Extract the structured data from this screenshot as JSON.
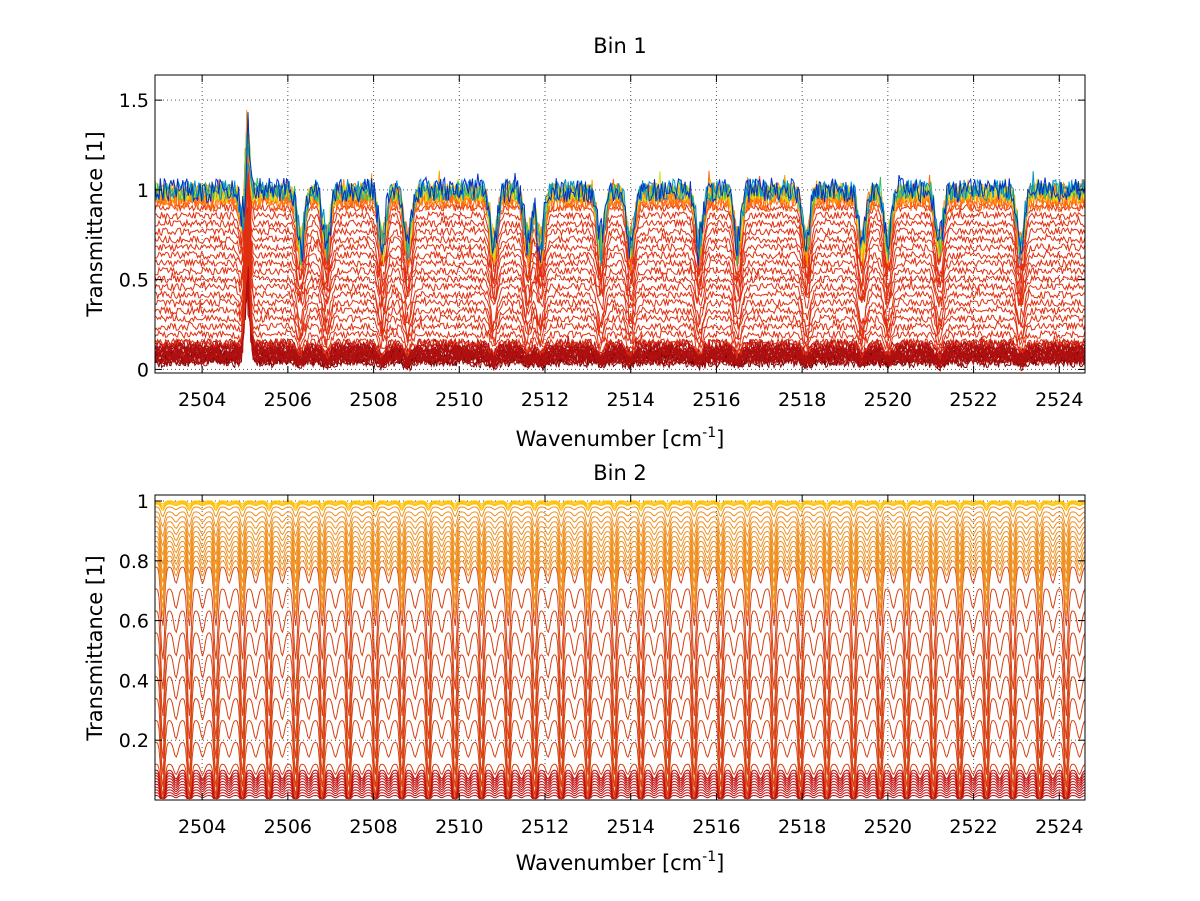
{
  "chart_data": [
    {
      "type": "line",
      "title": "Bin 1",
      "xlabel_main": "Wavenumber [cm",
      "xlabel_sup": "-1",
      "xlabel_end": "]",
      "ylabel": "Transmittance [1]",
      "xlim": [
        2502.9,
        2524.6
      ],
      "ylim": [
        -0.02,
        1.64
      ],
      "xticks": [
        2504,
        2506,
        2508,
        2510,
        2512,
        2514,
        2516,
        2518,
        2520,
        2522,
        2524
      ],
      "xtick_labels": [
        "2504",
        "2506",
        "2508",
        "2510",
        "2512",
        "2514",
        "2516",
        "2518",
        "2520",
        "2522",
        "2524"
      ],
      "yticks": [
        0,
        0.5,
        1,
        1.5
      ],
      "ytick_labels": [
        "0",
        "0.5",
        "1",
        "1.5"
      ],
      "grid": true,
      "x_range": [
        2502.9,
        2524.6
      ],
      "line_groups": [
        {
          "color": "#0030c8",
          "count": 1,
          "base_low": 1.0,
          "base_high": 1.0,
          "noise": 0.07,
          "spike": 0.1
        },
        {
          "color": "#0090d0",
          "count": 1,
          "base_low": 1.0,
          "base_high": 1.0,
          "noise": 0.06,
          "spike": 0.1
        },
        {
          "color": "#30c060",
          "count": 1,
          "base_low": 0.99,
          "base_high": 0.99,
          "noise": 0.05,
          "spike": 0.1
        },
        {
          "color": "#e0e020",
          "count": 2,
          "base_low": 0.98,
          "base_high": 0.99,
          "noise": 0.05,
          "spike": 0.1
        },
        {
          "color": "#ffa000",
          "count": 3,
          "base_low": 0.97,
          "base_high": 0.99,
          "noise": 0.05,
          "spike": 0.12
        },
        {
          "color": "#ff6a10",
          "count": 6,
          "base_low": 0.93,
          "base_high": 0.99,
          "noise": 0.05,
          "spike": 0.12
        },
        {
          "color": "#e03010",
          "count": 18,
          "base_low": 0.15,
          "base_high": 0.9,
          "noise": 0.02,
          "spike": 0.05
        },
        {
          "color": "#b01010",
          "count": 12,
          "base_low": 0.05,
          "base_high": 0.14,
          "noise": 0.03,
          "spike": 0.04
        },
        {
          "color": "#800000",
          "count": 6,
          "base_low": 0.04,
          "base_high": 0.1,
          "noise": 0.03,
          "spike": 0.03
        }
      ],
      "dips": [
        2505.0,
        2506.3,
        2506.9,
        2508.2,
        2508.8,
        2510.8,
        2511.6,
        2511.9,
        2513.3,
        2514.0,
        2515.6,
        2516.5,
        2518.1,
        2519.4,
        2520.0,
        2521.2,
        2523.1
      ],
      "spike_at": 2505.05,
      "spike_peak": 1.62
    },
    {
      "type": "line",
      "title": "Bin 2",
      "xlabel_main": "Wavenumber [cm",
      "xlabel_sup": "-1",
      "xlabel_end": "]",
      "ylabel": "Transmittance [1]",
      "xlim": [
        2502.9,
        2524.6
      ],
      "ylim": [
        0.0,
        1.02
      ],
      "xticks": [
        2504,
        2506,
        2508,
        2510,
        2512,
        2514,
        2516,
        2518,
        2520,
        2522,
        2524
      ],
      "xtick_labels": [
        "2504",
        "2506",
        "2508",
        "2510",
        "2512",
        "2514",
        "2516",
        "2518",
        "2520",
        "2522",
        "2524"
      ],
      "yticks": [
        0.2,
        0.4,
        0.6,
        0.8,
        1
      ],
      "ytick_labels": [
        "0.2",
        "0.4",
        "0.6",
        "0.8",
        "1"
      ],
      "grid": true,
      "x_range": [
        2502.9,
        2524.6
      ],
      "line_groups": [
        {
          "color": "#ffc000",
          "count": 4,
          "base_low": 0.99,
          "base_high": 1.0,
          "noise": 0.0,
          "spike": 0.0
        },
        {
          "color": "#f09020",
          "count": 12,
          "base_low": 0.8,
          "base_high": 0.98,
          "noise": 0.0,
          "spike": 0.0
        },
        {
          "color": "#d84010",
          "count": 10,
          "base_low": 0.12,
          "base_high": 0.78,
          "noise": 0.0,
          "spike": 0.0
        },
        {
          "color": "#c01010",
          "count": 10,
          "base_low": 0.015,
          "base_high": 0.1,
          "noise": 0.0,
          "spike": 0.0
        }
      ],
      "dip_spacing": 0.62,
      "dip_start": 2503.7
    }
  ]
}
